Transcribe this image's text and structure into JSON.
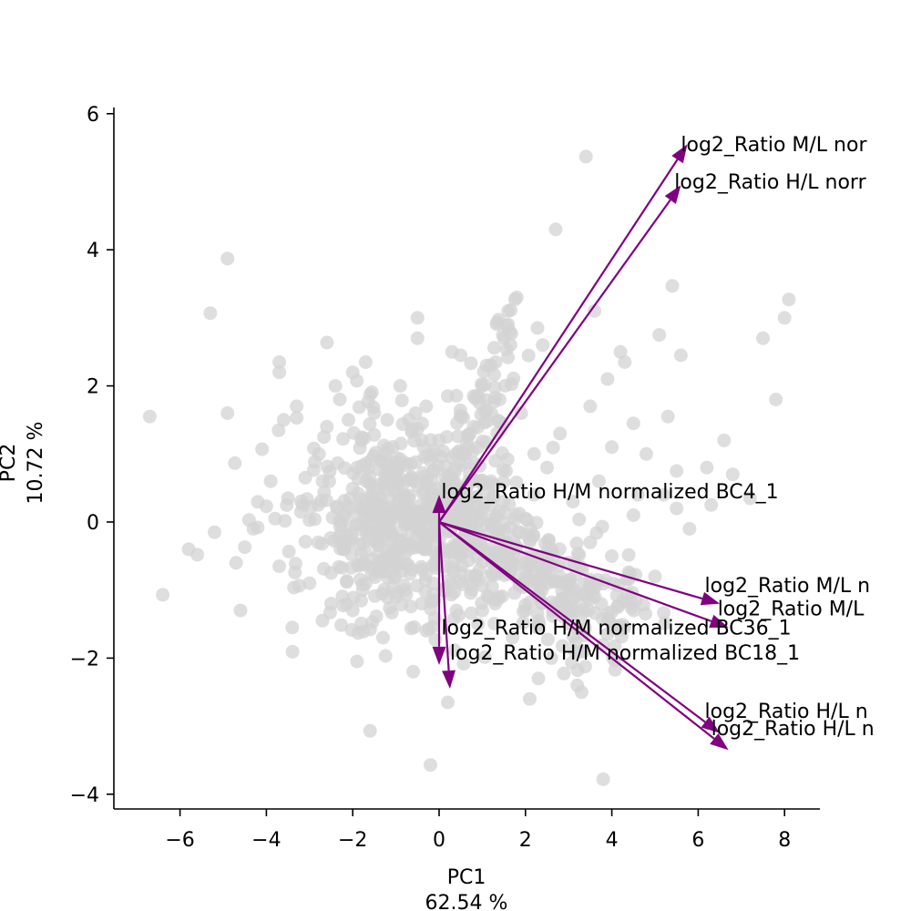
{
  "chart_data": {
    "type": "scatter",
    "title": "",
    "xlabel": "PC1",
    "xlabel_sub": "62.54 %",
    "ylabel": "PC2",
    "ylabel_sub": "10.72 %",
    "xlim": [
      -7.5,
      8.8
    ],
    "ylim": [
      -4.2,
      6.1
    ],
    "xticks": [
      -6,
      -4,
      -2,
      0,
      2,
      4,
      6,
      8
    ],
    "yticks": [
      -4,
      -2,
      0,
      2,
      4,
      6
    ],
    "xtick_labels": [
      "−6",
      "−4",
      "−2",
      "0",
      "2",
      "4",
      "6",
      "8"
    ],
    "ytick_labels": [
      "−4",
      "−2",
      "0",
      "2",
      "4",
      "6"
    ],
    "grid": false,
    "point_color": "#d3d3d3",
    "arrow_color": "#800080",
    "points": [
      [
        -6.7,
        1.55
      ],
      [
        -6.4,
        -1.07
      ],
      [
        -5.8,
        -0.4
      ],
      [
        -5.6,
        -0.48
      ],
      [
        -5.3,
        3.07
      ],
      [
        -5.2,
        -0.15
      ],
      [
        -4.9,
        1.6
      ],
      [
        -4.9,
        3.87
      ],
      [
        -4.7,
        -0.6
      ],
      [
        -4.6,
        -1.3
      ],
      [
        -4.5,
        -0.37
      ],
      [
        -4.4,
        0.03
      ],
      [
        -4.3,
        -0.1
      ],
      [
        -4.2,
        -0.08
      ],
      [
        -4.1,
        1.07
      ],
      [
        -4.0,
        0.23
      ],
      [
        -3.9,
        0.6
      ],
      [
        -3.8,
        0.05
      ],
      [
        -3.7,
        2.35
      ],
      [
        -3.7,
        2.2
      ],
      [
        -3.7,
        -0.65
      ],
      [
        -3.6,
        1.5
      ],
      [
        -3.5,
        0.35
      ],
      [
        -3.4,
        -1.55
      ],
      [
        -3.3,
        1.7
      ],
      [
        -3.3,
        1.53
      ],
      [
        -3.2,
        0.15
      ],
      [
        -3.1,
        0.65
      ],
      [
        -3.0,
        -0.9
      ],
      [
        -2.9,
        1.08
      ],
      [
        -2.8,
        0.25
      ],
      [
        -2.8,
        -0.3
      ],
      [
        -2.7,
        -1.45
      ],
      [
        -2.7,
        0.6
      ],
      [
        -2.6,
        1.4
      ],
      [
        -2.5,
        -0.75
      ],
      [
        -2.5,
        -1.2
      ],
      [
        -2.4,
        2.0
      ],
      [
        -2.3,
        1.8
      ],
      [
        -2.2,
        0.1
      ],
      [
        -2.2,
        -0.4
      ],
      [
        -2.1,
        1.5
      ],
      [
        -2.0,
        2.2
      ],
      [
        -2.0,
        -1.3
      ],
      [
        -1.9,
        0.8
      ],
      [
        -1.9,
        -2.05
      ],
      [
        -1.8,
        1.2
      ],
      [
        -1.7,
        2.35
      ],
      [
        -1.7,
        -0.9
      ],
      [
        -1.6,
        -3.07
      ],
      [
        -1.5,
        1.6
      ],
      [
        -1.4,
        -0.6
      ],
      [
        -1.3,
        -1.7
      ],
      [
        -1.2,
        1.5
      ],
      [
        -1.1,
        -0.3
      ],
      [
        -1.0,
        -1.1
      ],
      [
        -0.9,
        2.0
      ],
      [
        -0.8,
        0.4
      ],
      [
        -0.7,
        1.5
      ],
      [
        -0.6,
        -2.2
      ],
      [
        -0.5,
        3.0
      ],
      [
        -0.5,
        2.7
      ],
      [
        -0.4,
        -1.2
      ],
      [
        -0.3,
        1.7
      ],
      [
        -0.2,
        0.9
      ],
      [
        -0.1,
        -0.6
      ],
      [
        0.0,
        1.2
      ],
      [
        0.1,
        -1.0
      ],
      [
        0.2,
        1.85
      ],
      [
        0.3,
        2.5
      ],
      [
        0.4,
        -1.3
      ],
      [
        0.5,
        2.45
      ],
      [
        0.6,
        1.0
      ],
      [
        0.7,
        -0.9
      ],
      [
        0.8,
        1.4
      ],
      [
        0.9,
        -1.5
      ],
      [
        1.0,
        2.0
      ],
      [
        1.1,
        2.3
      ],
      [
        1.2,
        0.6
      ],
      [
        1.3,
        -1.2
      ],
      [
        1.4,
        1.8
      ],
      [
        1.5,
        2.7
      ],
      [
        1.6,
        2.9
      ],
      [
        1.6,
        3.1
      ],
      [
        1.7,
        -1.7
      ],
      [
        1.8,
        3.3
      ],
      [
        1.9,
        1.6
      ],
      [
        2.0,
        -1.3
      ],
      [
        2.1,
        -2.6
      ],
      [
        2.2,
        1.0
      ],
      [
        2.3,
        -2.3
      ],
      [
        2.4,
        2.6
      ],
      [
        2.5,
        0.8
      ],
      [
        2.6,
        -2.0
      ],
      [
        2.7,
        4.3
      ],
      [
        2.8,
        1.3
      ],
      [
        3.0,
        -1.5
      ],
      [
        3.1,
        0.3
      ],
      [
        3.2,
        -2.4
      ],
      [
        3.3,
        -2.5
      ],
      [
        3.4,
        5.37
      ],
      [
        3.5,
        1.7
      ],
      [
        3.6,
        3.1
      ],
      [
        3.7,
        0.6
      ],
      [
        3.8,
        -3.78
      ],
      [
        3.9,
        2.1
      ],
      [
        4.0,
        1.1
      ],
      [
        4.2,
        2.5
      ],
      [
        4.3,
        2.35
      ],
      [
        4.5,
        1.45
      ],
      [
        4.6,
        0.4
      ],
      [
        4.8,
        1.0
      ],
      [
        5.1,
        2.75
      ],
      [
        5.2,
        0.4
      ],
      [
        5.3,
        1.55
      ],
      [
        5.4,
        3.47
      ],
      [
        5.5,
        0.75
      ],
      [
        5.6,
        2.45
      ],
      [
        5.8,
        -0.1
      ],
      [
        6.2,
        0.8
      ],
      [
        6.3,
        0.25
      ],
      [
        6.6,
        1.2
      ],
      [
        6.8,
        0.7
      ],
      [
        7.2,
        0.35
      ],
      [
        7.5,
        2.7
      ],
      [
        7.8,
        1.8
      ],
      [
        8.0,
        3.0
      ],
      [
        8.1,
        3.27
      ],
      [
        -0.2,
        -3.57
      ],
      [
        0.2,
        -2.65
      ],
      [
        1.0,
        -1.3
      ],
      [
        0.5,
        -0.5
      ],
      [
        1.5,
        -0.4
      ],
      [
        2.0,
        -0.7
      ],
      [
        2.5,
        -0.9
      ],
      [
        3.0,
        -0.6
      ],
      [
        3.5,
        -0.3
      ],
      [
        4.0,
        -0.5
      ],
      [
        4.5,
        0.1
      ],
      [
        5.0,
        -0.8
      ],
      [
        5.5,
        0.2
      ],
      [
        0.8,
        0.6
      ],
      [
        1.3,
        0.9
      ],
      [
        2.2,
        0.4
      ]
    ],
    "cluster": {
      "cx": -0.9,
      "cy": 0.0,
      "sx": 1.1,
      "sy": 0.75,
      "n": 900
    },
    "loadings": [
      {
        "label": "log2_Ratio M/L nor",
        "x": 5.75,
        "y": 5.55,
        "lx": 5.6,
        "ly": 5.45
      },
      {
        "label": "log2_Ratio H/L norr",
        "x": 5.6,
        "y": 4.95,
        "lx": 5.45,
        "ly": 4.9
      },
      {
        "label": "log2_Ratio H/M normalized BC4_1",
        "x": 0.0,
        "y": 0.4,
        "lx": 0.05,
        "ly": 0.35
      },
      {
        "label": "log2_Ratio M/L n",
        "x": 6.5,
        "y": -1.2,
        "lx": 6.15,
        "ly": -1.03
      },
      {
        "label": "log2_Ratio M/L",
        "x": 6.7,
        "y": -1.55,
        "lx": 6.45,
        "ly": -1.37
      },
      {
        "label": "log2_Ratio H/M normalized BC36_1",
        "x": 0.0,
        "y": -2.1,
        "lx": 0.05,
        "ly": -1.65
      },
      {
        "label": "log2_Ratio H/M normalized BC18_1",
        "x": 0.25,
        "y": -2.45,
        "lx": 0.25,
        "ly": -2.02
      },
      {
        "label": "log2_Ratio H/L n",
        "x": 6.5,
        "y": -3.1,
        "lx": 6.15,
        "ly": -2.88
      },
      {
        "label": "log2_Ratio H/L n",
        "x": 6.7,
        "y": -3.35,
        "lx": 6.3,
        "ly": -3.13
      }
    ]
  }
}
